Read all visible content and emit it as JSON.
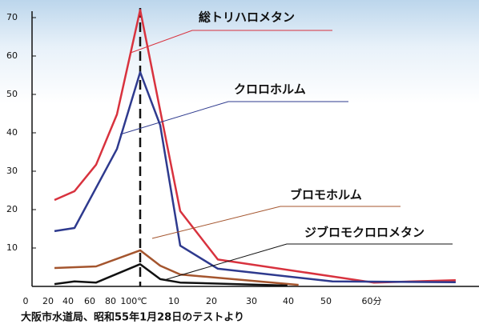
{
  "chart_data": {
    "type": "line",
    "series": [
      {
        "name": "総トリハロメタン",
        "color": "#d8323e",
        "x": [
          20,
          40,
          60,
          80,
          100,
          110,
          120,
          159,
          177
        ],
        "values": [
          22.5,
          24.8,
          31.7,
          44.8,
          72,
          19.6,
          7,
          1,
          1.6
        ]
      },
      {
        "name": "クロロホルム",
        "color": "#2e3a8e",
        "x": [
          20,
          40,
          80,
          100,
          105,
          110,
          120,
          150,
          177
        ],
        "values": [
          14.4,
          15.2,
          35.8,
          55.8,
          42,
          10.6,
          4.6,
          1.3,
          1.1
        ]
      },
      {
        "name": "ブロモホルム",
        "color": "#a4552e",
        "x": [
          20,
          60,
          100,
          105,
          110,
          141
        ],
        "values": [
          4.8,
          5.2,
          9.4,
          5.4,
          3.1,
          0.4
        ]
      },
      {
        "name": "ジブロモクロロメタン",
        "color": "#111111",
        "x": [
          20,
          40,
          60,
          100,
          105,
          110,
          138
        ],
        "values": [
          0.6,
          1.3,
          1,
          5.8,
          1.9,
          1,
          0.2
        ]
      }
    ],
    "ylim": [
      0,
      75
    ],
    "yticks": [
      10,
      20,
      30,
      40,
      50,
      60,
      70
    ],
    "xlim": [
      0,
      180
    ],
    "xticks": [
      0,
      20,
      40,
      60,
      80,
      {
        "value": 100,
        "label": "100℃"
      },
      {
        "value": 110,
        "label": "10"
      },
      {
        "value": 120,
        "label": "20"
      },
      {
        "value": 130,
        "label": "30"
      },
      {
        "value": 140,
        "label": "40"
      },
      {
        "value": 150,
        "label": "50"
      },
      {
        "value": 160,
        "label": "60分"
      }
    ],
    "annotations": [
      "大阪市水道局、昭和55年1月28日のテストより"
    ]
  }
}
